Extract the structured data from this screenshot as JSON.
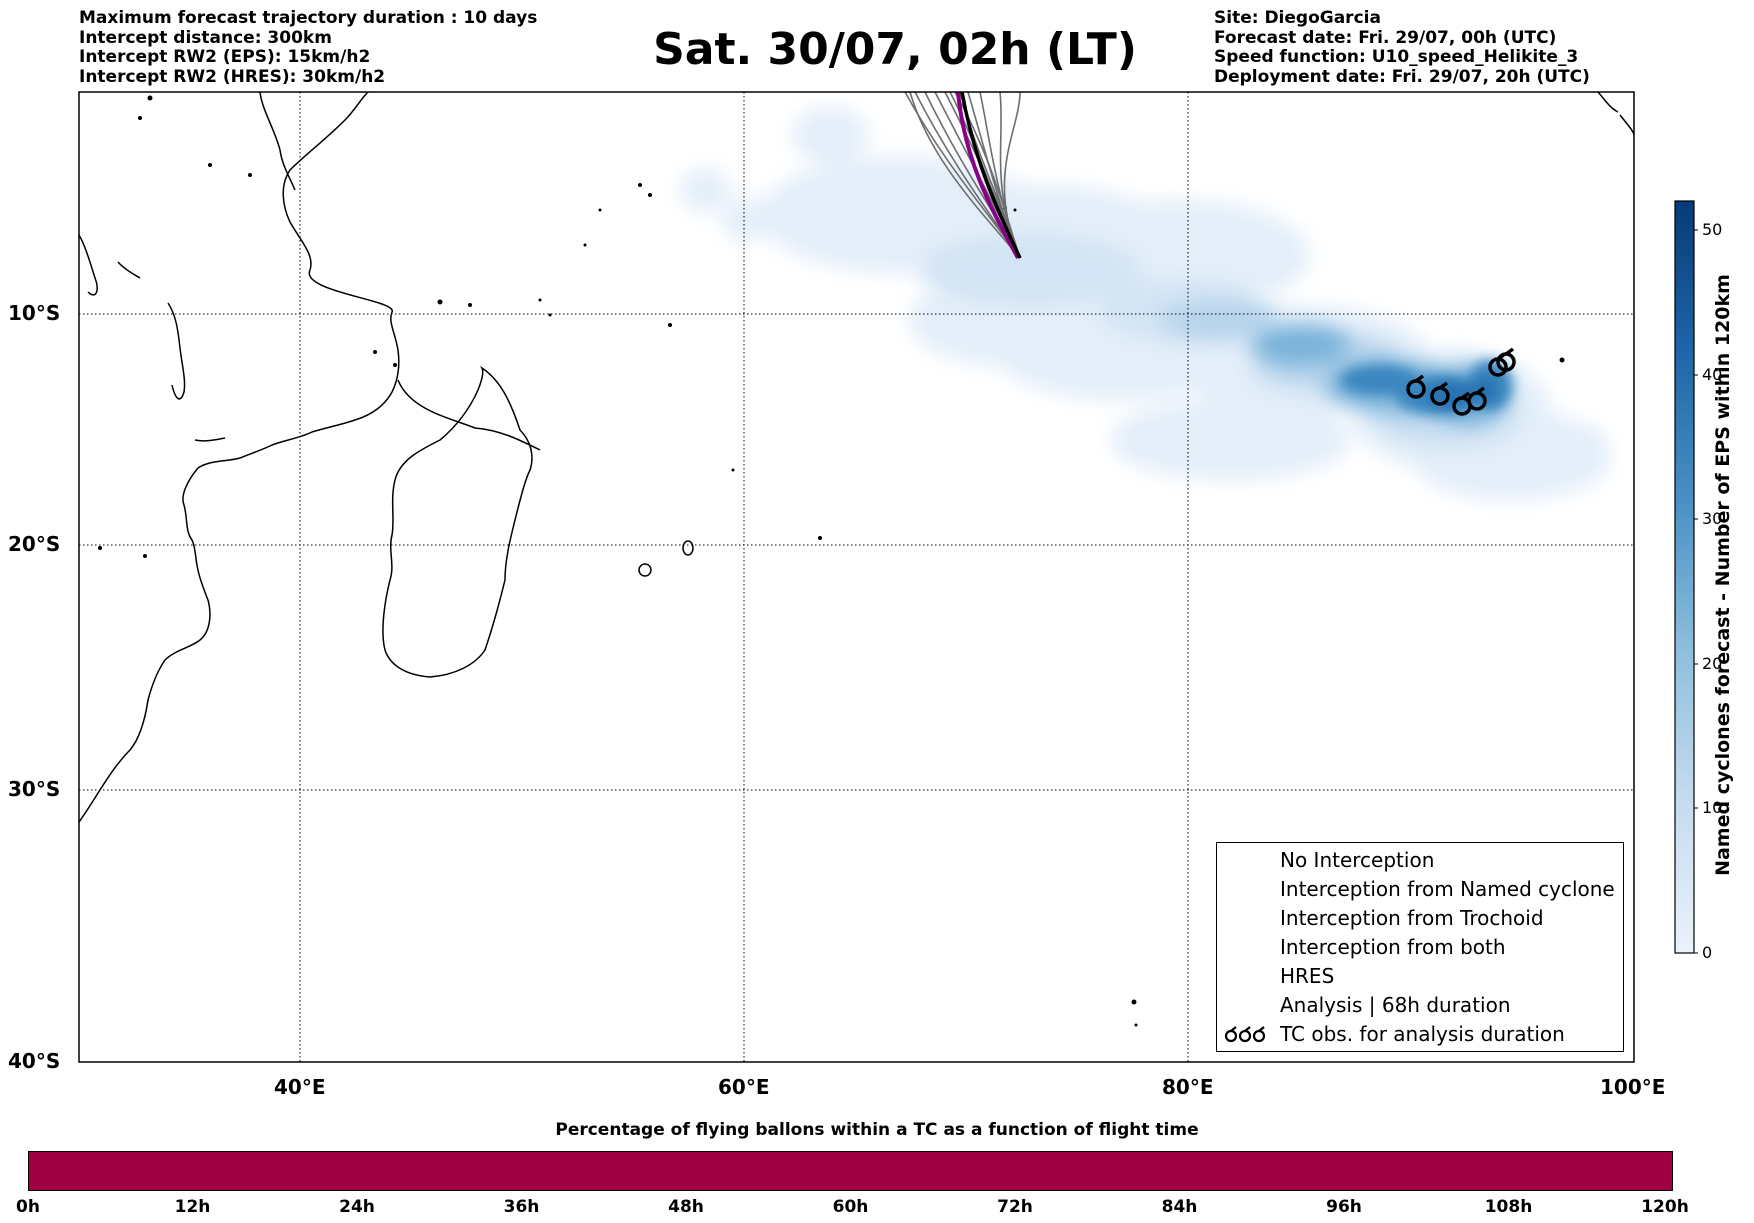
{
  "header_left": [
    "Maximum forecast trajectory duration : 10 days",
    "Intercept distance: 300km",
    "Intercept RW2 (EPS):  15km/h2",
    "Intercept RW2 (HRES): 30km/h2"
  ],
  "title": "Sat. 30/07, 02h (LT)",
  "header_right": [
    "Site: DiegoGarcia",
    "Forecast date: Fri. 29/07, 00h (UTC)",
    "Speed function: U10_speed_Helikite_3",
    "Deployment date: Fri. 29/07, 20h (UTC)"
  ],
  "map": {
    "lon_range": [
      30,
      100
    ],
    "lat_range": [
      -40,
      0
    ],
    "lat_ticks": [
      "10°S",
      "20°S",
      "30°S",
      "40°S"
    ],
    "lon_ticks": [
      "40°E",
      "60°E",
      "80°E",
      "100°E"
    ],
    "grid": "dotted"
  },
  "colorbar": {
    "label": "Named cyclones forecast - Number of EPS within 120km",
    "ticks": [
      "0",
      "10",
      "20",
      "30",
      "40",
      "50"
    ],
    "range": [
      0,
      52
    ],
    "colormap": "Blues"
  },
  "legend": {
    "items": [
      {
        "label": "No Interception",
        "color": "#808080"
      },
      {
        "label": "Interception from Named cyclone",
        "color": "#e05a1a"
      },
      {
        "label": "Interception from Trochoid",
        "color": "#8b8000"
      },
      {
        "label": "Interception from both",
        "color": "#2e8b2e"
      },
      {
        "label": "HRES",
        "color": "#8b008b"
      },
      {
        "label": "Analysis | 68h duration",
        "color": "#000000"
      },
      {
        "label": "TC obs. for analysis duration",
        "color": "#000000",
        "icon": "cyclone-symbol-icon"
      }
    ]
  },
  "bottom": {
    "title": "Percentage of flying ballons within a TC as a function of flight time",
    "bar_color": "#9e0041",
    "ticks": [
      "0h",
      "12h",
      "24h",
      "36h",
      "48h",
      "60h",
      "72h",
      "84h",
      "96h",
      "108h",
      "120h"
    ]
  }
}
